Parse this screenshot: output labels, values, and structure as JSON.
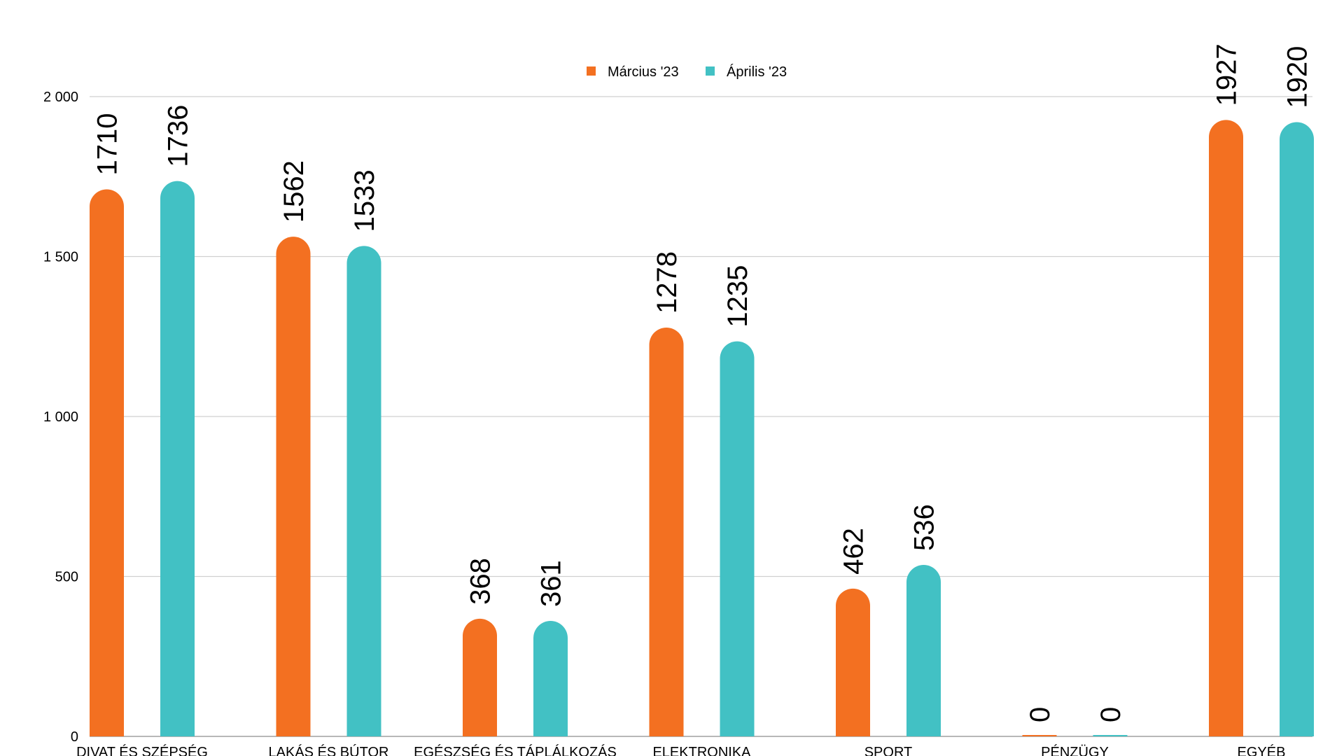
{
  "chart_data": {
    "type": "bar",
    "title": "",
    "xlabel": "",
    "ylabel": "",
    "ylim": [
      0,
      2000
    ],
    "yticks": [
      0,
      500,
      1000,
      1500,
      2000
    ],
    "ytick_labels": [
      "0",
      "500",
      "1 000",
      "1 500",
      "2 000"
    ],
    "grid": true,
    "legend_position": "top-center",
    "bar_style": "rounded-top",
    "categories": [
      "DIVAT ÉS SZÉPSÉG",
      "LAKÁS ÉS BÚTOR",
      "EGÉSZSÉG ÉS TÁPLÁLKOZÁS",
      "ELEKTRONIKA",
      "SPORT",
      "PÉNZÜGY",
      "EGYÉB"
    ],
    "series": [
      {
        "name": "Március '23",
        "color": "#F37021",
        "values": [
          1710,
          1562,
          368,
          1278,
          462,
          0,
          1927
        ]
      },
      {
        "name": "Április '23",
        "color": "#42C1C4",
        "values": [
          1736,
          1533,
          361,
          1235,
          536,
          0,
          1920
        ]
      }
    ]
  }
}
